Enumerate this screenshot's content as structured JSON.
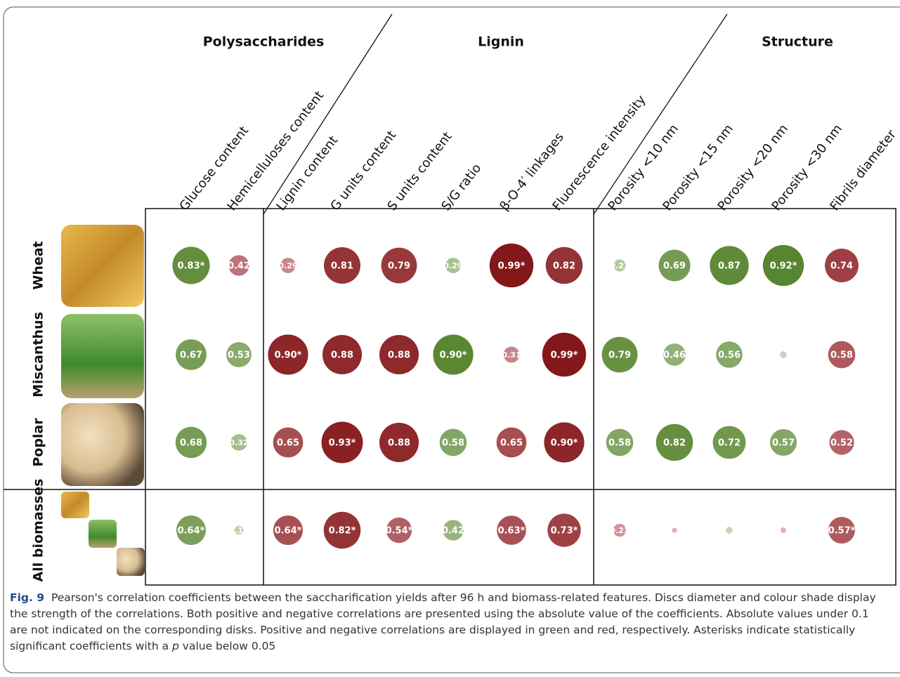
{
  "groups": [
    "Polysaccharides",
    "Lignin",
    "Structure"
  ],
  "columns": [
    "Glucose content",
    "Hemicelluloses content",
    "Lignin content",
    "G units content",
    "S units content",
    "S/G ratio",
    "β-O-4′ linkages",
    "Fluorescence intensity",
    "Porosity <10 nm",
    "Porosity <15 nm",
    "Porosity <20 nm",
    "Porosity <30 nm",
    "Fibrils diameter"
  ],
  "rows": [
    {
      "name": "Wheat",
      "cells": [
        {
          "value": 0.83,
          "label": "0.83*",
          "color": "green"
        },
        {
          "value": 0.42,
          "color": "red"
        },
        {
          "value": 0.29,
          "color": "red"
        },
        {
          "value": 0.81,
          "color": "red"
        },
        {
          "value": 0.79,
          "color": "red"
        },
        {
          "value": 0.29,
          "color": "green"
        },
        {
          "value": 0.99,
          "label": "0.99*",
          "color": "red"
        },
        {
          "value": 0.82,
          "color": "red"
        },
        {
          "value": 0.21,
          "color": "green"
        },
        {
          "value": 0.69,
          "color": "green"
        },
        {
          "value": 0.87,
          "color": "green"
        },
        {
          "value": 0.92,
          "label": "0.92*",
          "color": "green"
        },
        {
          "value": 0.74,
          "color": "red"
        }
      ]
    },
    {
      "name": "Miscanthus",
      "cells": [
        {
          "value": 0.67,
          "color": "green"
        },
        {
          "value": 0.53,
          "color": "green"
        },
        {
          "value": 0.9,
          "label": "0.90*",
          "color": "red"
        },
        {
          "value": 0.88,
          "color": "red"
        },
        {
          "value": 0.88,
          "color": "red"
        },
        {
          "value": 0.9,
          "label": "0.90*",
          "color": "green"
        },
        {
          "value": 0.31,
          "color": "red"
        },
        {
          "value": 0.99,
          "label": "0.99*",
          "color": "red"
        },
        {
          "value": 0.79,
          "color": "green"
        },
        {
          "value": 0.46,
          "color": "green"
        },
        {
          "value": 0.56,
          "color": "green"
        },
        {
          "value": 0.08,
          "color": "green"
        },
        {
          "value": 0.58,
          "color": "red"
        }
      ]
    },
    {
      "name": "Poplar",
      "cells": [
        {
          "value": 0.68,
          "color": "green"
        },
        {
          "value": 0.32,
          "color": "green"
        },
        {
          "value": 0.65,
          "color": "red"
        },
        {
          "value": 0.93,
          "label": "0.93*",
          "color": "red"
        },
        {
          "value": 0.88,
          "color": "red"
        },
        {
          "value": 0.58,
          "color": "green"
        },
        {
          "value": 0.65,
          "color": "red"
        },
        {
          "value": 0.9,
          "label": "0.90*",
          "color": "red"
        },
        {
          "value": 0.58,
          "color": "green"
        },
        {
          "value": 0.82,
          "color": "green"
        },
        {
          "value": 0.72,
          "color": "green"
        },
        {
          "value": 0.57,
          "color": "green"
        },
        {
          "value": 0.52,
          "color": "red"
        }
      ]
    },
    {
      "name": "All biomasses",
      "cells": [
        {
          "value": 0.64,
          "label": "0.64*",
          "color": "green"
        },
        {
          "value": 0.13,
          "color": "green"
        },
        {
          "value": 0.64,
          "label": "0.64*",
          "color": "red"
        },
        {
          "value": 0.82,
          "label": "0.82*",
          "color": "red"
        },
        {
          "value": 0.54,
          "label": "0.54*",
          "color": "red"
        },
        {
          "value": 0.42,
          "color": "green"
        },
        {
          "value": 0.63,
          "label": "0.63*",
          "color": "red"
        },
        {
          "value": 0.73,
          "label": "0.73*",
          "color": "red"
        },
        {
          "value": 0.23,
          "color": "red"
        },
        {
          "value": 0.04,
          "color": "red"
        },
        {
          "value": 0.08,
          "color": "green"
        },
        {
          "value": 0.05,
          "color": "red"
        },
        {
          "value": 0.57,
          "label": "0.57*",
          "color": "red"
        }
      ]
    }
  ],
  "caption": {
    "label": "Fig. 9",
    "text": "Pearson's correlation coefficients between the saccharification yields after 96 h and biomass-related features. Discs diameter and colour shade display the strength of the correlations. Both positive and negative correlations are presented using the absolute value of the coefficients. Absolute values under 0.1 are not indicated on the corresponding disks. Positive and negative correlations are displayed in green and red, respectively. Asterisks indicate statistically significant coefficients with a",
    "italic": "p",
    "end": "value below 0.05"
  }
}
